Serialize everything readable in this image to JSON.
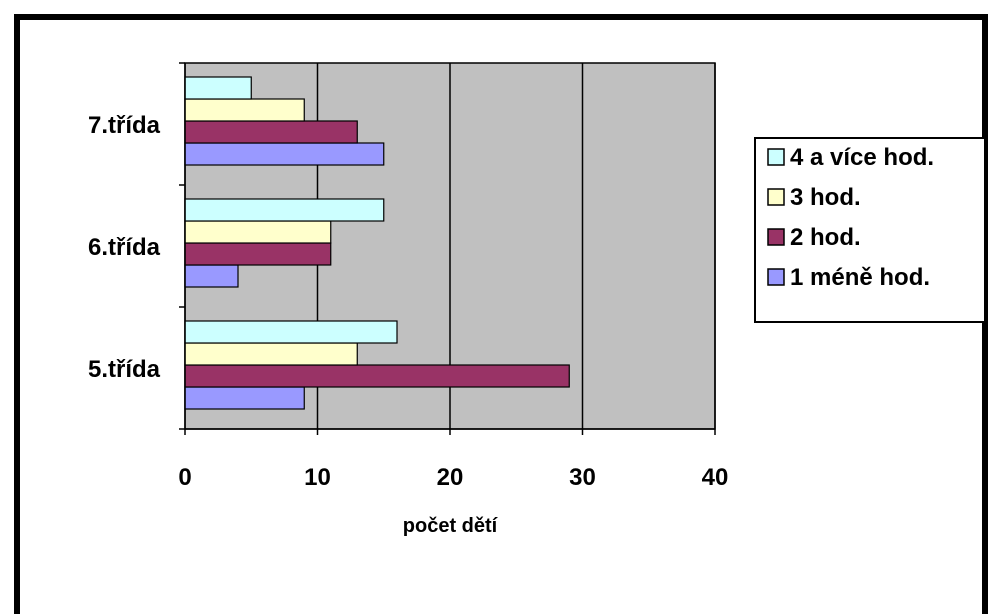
{
  "chart_data": {
    "type": "bar",
    "orientation": "horizontal",
    "categories": [
      "5.třída",
      "6.třída",
      "7.třída"
    ],
    "series": [
      {
        "name": "1 méně hod.",
        "color": "#9999ff",
        "values": [
          9,
          4,
          15
        ]
      },
      {
        "name": "2 hod.",
        "color": "#993366",
        "values": [
          29,
          11,
          13
        ]
      },
      {
        "name": "3 hod.",
        "color": "#ffffcc",
        "values": [
          13,
          11,
          9
        ]
      },
      {
        "name": "4 a více hod.",
        "color": "#ccffff",
        "values": [
          16,
          15,
          5
        ]
      }
    ],
    "xlabel": "počet dětí",
    "ylabel": "",
    "xlim": [
      0,
      40
    ],
    "xticks": [
      "0",
      "10",
      "20",
      "30",
      "40"
    ],
    "grid": true,
    "plot_background": "#c0c0c0",
    "legend_position": "right"
  }
}
